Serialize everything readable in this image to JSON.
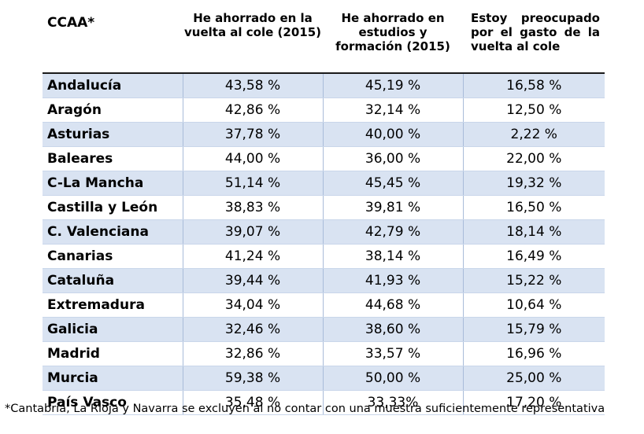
{
  "table": {
    "headers": [
      "CCAA*",
      "He ahorrado en la vuelta al cole (2015)",
      "He ahorrado en estudios y formación (2015)",
      "Estoy preocupado por el gasto de la vuelta al cole"
    ],
    "rows": [
      [
        "Andalucía",
        "43,58 %",
        "45,19 %",
        "16,58 %"
      ],
      [
        "Aragón",
        "42,86 %",
        "32,14 %",
        "12,50 %"
      ],
      [
        "Asturias",
        "37,78 %",
        "40,00 %",
        "2,22 %"
      ],
      [
        "Baleares",
        "44,00 %",
        "36,00 %",
        "22,00 %"
      ],
      [
        "C-La Mancha",
        "51,14 %",
        "45,45 %",
        "19,32 %"
      ],
      [
        "Castilla y León",
        "38,83 %",
        "39,81 %",
        "16,50 %"
      ],
      [
        "C. Valenciana",
        "39,07 %",
        "42,79 %",
        "18,14 %"
      ],
      [
        "Canarias",
        "41,24 %",
        "38,14 %",
        "16,49 %"
      ],
      [
        "Cataluña",
        "39,44 %",
        "41,93 %",
        "15,22 %"
      ],
      [
        "Extremadura",
        "34,04 %",
        "44,68 %",
        "10,64 %"
      ],
      [
        "Galicia",
        "32,46 %",
        "38,60 %",
        "15,79 %"
      ],
      [
        "Madrid",
        "32,86 %",
        "33,57 %",
        "16,96 %"
      ],
      [
        "Murcia",
        "59,38 %",
        "50,00 %",
        "25,00 %"
      ],
      [
        "País Vasco",
        "35,48 %",
        "33,33%",
        "17,20 %"
      ]
    ]
  },
  "footnote": "*Cantabria, La Rioja y Navarra se excluyen al no contar con una muestra suficientemente representativa",
  "colors": {
    "band": "#d9e3f2",
    "divider": "#a9bcd9"
  }
}
